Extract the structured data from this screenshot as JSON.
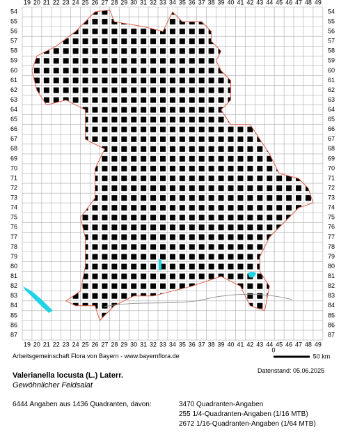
{
  "map": {
    "columns": [
      19,
      20,
      21,
      22,
      23,
      24,
      25,
      26,
      27,
      28,
      29,
      30,
      31,
      32,
      33,
      34,
      35,
      36,
      37,
      38,
      39,
      40,
      41,
      42,
      43,
      44,
      45,
      46,
      47,
      48,
      49
    ],
    "rows": [
      54,
      55,
      56,
      57,
      58,
      59,
      60,
      61,
      62,
      63,
      64,
      65,
      66,
      67,
      68,
      69,
      70,
      71,
      72,
      73,
      74,
      75,
      76,
      77,
      78,
      79,
      80,
      81,
      82,
      83,
      84,
      85,
      86,
      87
    ],
    "scale_start": "0",
    "scale_end": "50 km"
  },
  "footer": {
    "credit": "Arbeitsgemeinschaft Flora von Bayern - www.bayernflora.de",
    "date": "Datenstand: 05.06.2025",
    "species": "Valerianella locusta (L.) Laterr.",
    "common_name": "Gewöhnlicher Feldsalat",
    "summary": "6444 Angaben aus 1436 Quadranten, davon:",
    "details": [
      "3470 Quadranten-Angaben",
      "255 1/4-Quadranten-Angaben (1/16 MTB)",
      "2672 1/16-Quadranten-Angaben (1/64 MTB)"
    ]
  }
}
